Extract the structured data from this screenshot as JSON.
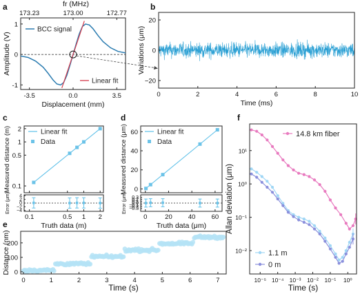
{
  "colors": {
    "bcc": "#2a7bb0",
    "fit_red": "#d63a4a",
    "noise": "#2ba0d4",
    "light_blue": "#5ec0e8",
    "point_blue": "#6cc3e8",
    "dist_fill": "#b5e3f6",
    "pink": "#e87abf",
    "allan_light": "#9fd6f5",
    "allan_purple": "#8a8fdc"
  },
  "panels": {
    "a": {
      "letter": "a"
    },
    "b": {
      "letter": "b"
    },
    "c": {
      "letter": "c"
    },
    "d": {
      "letter": "d"
    },
    "e": {
      "letter": "e"
    },
    "f": {
      "letter": "f"
    }
  },
  "chart_data": [
    {
      "id": "a",
      "type": "line",
      "xlabel": "Displacement (mm)",
      "ylabel": "Amplitude (V)",
      "top_axis_label": "fr (MHz)",
      "xlim": [
        -4.2,
        4.2
      ],
      "ylim": [
        -1.15,
        1.2
      ],
      "xticks": [
        -3.5,
        0.0,
        3.5
      ],
      "xtick_labels": [
        "-3.5",
        "0.0",
        "3.5"
      ],
      "yticks": [
        -1,
        0,
        1
      ],
      "ytick_labels": [
        "-1",
        "0",
        "1"
      ],
      "top_ticks": [
        -3.5,
        0.0,
        3.5
      ],
      "top_tick_labels": [
        "173.23",
        "173.00",
        "172.77"
      ],
      "series": [
        {
          "name": "BCC signal",
          "x": [
            -4.2,
            -3.6,
            -3.0,
            -2.4,
            -2.0,
            -1.6,
            -1.3,
            -1.0,
            -0.75,
            -0.5,
            -0.25,
            0,
            0.25,
            0.5,
            0.75,
            1.0,
            1.3,
            1.6,
            2.0,
            2.4,
            3.0,
            3.6,
            4.2
          ],
          "y": [
            -0.05,
            -0.1,
            -0.22,
            -0.42,
            -0.62,
            -0.84,
            -0.97,
            -1.0,
            -0.92,
            -0.68,
            -0.35,
            0,
            0.35,
            0.68,
            0.92,
            1.0,
            0.97,
            0.84,
            0.62,
            0.42,
            0.22,
            0.1,
            0.05
          ]
        },
        {
          "name": "Linear fit",
          "x": [
            -0.9,
            0.9
          ],
          "y": [
            -1.1,
            1.1
          ]
        }
      ]
    },
    {
      "id": "b",
      "type": "line",
      "xlabel": "Time (ms)",
      "ylabel": "Variations (μm)",
      "xlim": [
        0,
        10
      ],
      "ylim": [
        -25,
        25
      ],
      "xticks": [
        0,
        2,
        4,
        6,
        8,
        10
      ],
      "yticks": [
        -20,
        0,
        20
      ],
      "series": [
        {
          "name": "",
          "noise_amplitude_um": 5
        }
      ]
    },
    {
      "id": "c",
      "type": "line",
      "xlabel": "Truth data (m)",
      "ylabel": "Measured distance (m)",
      "ylabel_lower": "Error (μm)",
      "xscale": "log",
      "yscale": "log",
      "xlim": [
        0.08,
        2.3
      ],
      "ylim": [
        0.07,
        2.3
      ],
      "xticks": [
        0.1,
        0.5,
        1,
        2
      ],
      "xtick_labels": [
        "0.1",
        "0.5",
        "1",
        "2"
      ],
      "yticks": [
        0.1,
        0.5,
        1,
        2
      ],
      "ytick_labels": [
        "0.1",
        "0.5",
        "1",
        "2"
      ],
      "lower_ylim": [
        -4.5,
        4.5
      ],
      "lower_yticks": [
        -4,
        -2,
        0,
        2,
        4
      ],
      "lower_ytick_labels": [
        "−4",
        "−2",
        "0",
        "2",
        "4"
      ],
      "series": [
        {
          "name": "Linear fit",
          "x": [
            0.12,
            2.0
          ],
          "y": [
            0.12,
            2.0
          ]
        },
        {
          "name": "Data",
          "x": [
            0.12,
            0.55,
            0.75,
            1.0,
            2.0
          ],
          "y": [
            0.12,
            0.55,
            0.75,
            1.0,
            2.0
          ]
        }
      ],
      "errors": {
        "x": [
          0.12,
          0.55,
          0.75,
          1.0,
          2.0
        ],
        "y": [
          0.1,
          0.0,
          0.1,
          0.1,
          0.0
        ],
        "err": [
          2.8,
          2.8,
          2.8,
          2.8,
          2.8
        ]
      }
    },
    {
      "id": "d",
      "type": "line",
      "xlabel": "Truth data (μm)",
      "ylabel": "Measured distance (μm)",
      "ylabel_lower": "Error (μm)",
      "xlim": [
        -4,
        66
      ],
      "ylim": [
        -4,
        66
      ],
      "xticks": [
        0,
        20,
        40,
        60
      ],
      "yticks": [
        0,
        20,
        40,
        60
      ],
      "lower_ylim": [
        -0.45,
        0.45
      ],
      "lower_yticks": [
        -0.3,
        -0.2,
        -0.1,
        0.0,
        0.1,
        0.2,
        0.3
      ],
      "lower_ytick_labels": [
        "−0.3",
        "−0.2",
        "−0.1",
        "0.0",
        "0.1",
        "0.2",
        "0.3"
      ],
      "series": [
        {
          "name": "Linear fit",
          "x": [
            0,
            62
          ],
          "y": [
            0,
            62
          ]
        },
        {
          "name": "Data",
          "x": [
            0.5,
            4.5,
            15,
            47,
            62
          ],
          "y": [
            0.5,
            4.5,
            15,
            47,
            62
          ]
        }
      ],
      "errors": {
        "x": [
          0.5,
          4.5,
          15,
          47,
          62
        ],
        "y": [
          0.0,
          0.02,
          0.02,
          0.0,
          0.0
        ],
        "err": [
          0.22,
          0.22,
          0.22,
          0.22,
          0.22
        ]
      }
    },
    {
      "id": "e",
      "type": "scatter",
      "xlabel": "Time (s)",
      "ylabel": "Distance (nm)",
      "xlim": [
        -0.1,
        7.3
      ],
      "ylim": [
        -15,
        280
      ],
      "xticks": [
        0,
        1,
        2,
        3,
        4,
        5,
        6,
        7
      ],
      "yticks": [
        0,
        100,
        200
      ],
      "steps": [
        {
          "t_start": 0.0,
          "t_end": 1.1,
          "level": 10
        },
        {
          "t_start": 1.15,
          "t_end": 2.4,
          "level": 55
        },
        {
          "t_start": 2.45,
          "t_end": 3.6,
          "level": 105
        },
        {
          "t_start": 3.65,
          "t_end": 4.85,
          "level": 150
        },
        {
          "t_start": 4.9,
          "t_end": 6.1,
          "level": 195
        },
        {
          "t_start": 6.15,
          "t_end": 7.2,
          "level": 240
        }
      ],
      "noise_nm": 9
    },
    {
      "id": "f",
      "type": "line",
      "xlabel": "Time (s)",
      "ylabel": "Allan deviation (μm)",
      "xscale": "log",
      "yscale": "log",
      "xlim_exp": [
        -5.6,
        0.5
      ],
      "ylim_exp": [
        -2.7,
        1.8
      ],
      "xticks_exp": [
        -5,
        -4,
        -3,
        -2,
        -1,
        0
      ],
      "xtick_labels": [
        "10⁻⁵",
        "10⁻⁴",
        "10⁻³",
        "10⁻²",
        "10⁻¹",
        "10⁰"
      ],
      "yticks_exp": [
        -2,
        -1,
        0,
        1
      ],
      "ytick_labels": [
        "10⁻²",
        "10⁻¹",
        "10⁰",
        "10¹"
      ],
      "series": [
        {
          "name": "14.8 km fiber",
          "log_x": [
            -5.5,
            -5.2,
            -4.9,
            -4.6,
            -4.3,
            -4.0,
            -3.7,
            -3.4,
            -3.1,
            -2.8,
            -2.5,
            -2.2,
            -1.9,
            -1.6,
            -1.3,
            -1.0,
            -0.7,
            -0.4,
            -0.1,
            0.1,
            0.3,
            0.45
          ],
          "log_y": [
            1.62,
            1.58,
            1.47,
            1.32,
            1.12,
            0.92,
            0.72,
            0.55,
            0.42,
            0.32,
            0.28,
            0.22,
            0.12,
            -0.02,
            -0.22,
            -0.48,
            -0.72,
            -0.92,
            -1.18,
            -1.35,
            -1.25,
            -1.05
          ]
        },
        {
          "name": "1.1 m",
          "log_x": [
            -5.5,
            -5.2,
            -4.9,
            -4.6,
            -4.3,
            -4.0,
            -3.7,
            -3.4,
            -3.1,
            -2.8,
            -2.5,
            -2.2,
            -1.9,
            -1.6,
            -1.3,
            -1.0,
            -0.7,
            -0.5,
            -0.3,
            -0.1,
            0.1,
            0.3
          ],
          "log_y": [
            0.45,
            0.35,
            0.22,
            0.08,
            -0.1,
            -0.35,
            -0.58,
            -0.8,
            -0.92,
            -1.0,
            -1.05,
            -1.12,
            -1.25,
            -1.42,
            -1.62,
            -1.85,
            -2.1,
            -2.28,
            -2.2,
            -2.0,
            -1.75,
            -1.5
          ]
        },
        {
          "name": "0 m",
          "log_x": [
            -5.5,
            -5.2,
            -4.9,
            -4.6,
            -4.3,
            -4.0,
            -3.7,
            -3.4,
            -3.1,
            -2.8,
            -2.5,
            -2.2,
            -1.9,
            -1.6,
            -1.3,
            -1.0,
            -0.7,
            -0.5,
            -0.3,
            -0.1,
            0.1,
            0.3
          ],
          "log_y": [
            0.3,
            0.2,
            0.05,
            -0.1,
            -0.25,
            -0.45,
            -0.65,
            -0.85,
            -0.98,
            -1.08,
            -1.15,
            -1.22,
            -1.35,
            -1.5,
            -1.72,
            -1.95,
            -2.2,
            -2.38,
            -2.32,
            -2.1,
            -1.9,
            -1.65
          ]
        }
      ]
    }
  ]
}
